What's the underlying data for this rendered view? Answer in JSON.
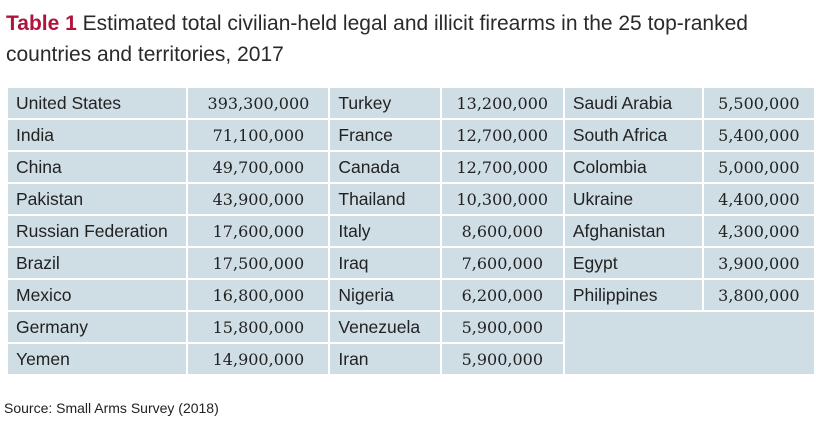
{
  "title": {
    "label": "Table 1",
    "text": " Estimated total civilian-held legal and illicit firearms in the 25 top-ranked countries and territories, 2017"
  },
  "rows": [
    [
      [
        "United States",
        "393,300,000"
      ],
      [
        "Turkey",
        "13,200,000"
      ],
      [
        "Saudi Arabia",
        "5,500,000"
      ]
    ],
    [
      [
        "India",
        "71,100,000"
      ],
      [
        "France",
        "12,700,000"
      ],
      [
        "South Africa",
        "5,400,000"
      ]
    ],
    [
      [
        "China",
        "49,700,000"
      ],
      [
        "Canada",
        "12,700,000"
      ],
      [
        "Colombia",
        "5,000,000"
      ]
    ],
    [
      [
        "Pakistan",
        "43,900,000"
      ],
      [
        "Thailand",
        "10,300,000"
      ],
      [
        "Ukraine",
        "4,400,000"
      ]
    ],
    [
      [
        "Russian Federation",
        "17,600,000"
      ],
      [
        "Italy",
        "8,600,000"
      ],
      [
        "Afghanistan",
        "4,300,000"
      ]
    ],
    [
      [
        "Brazil",
        "17,500,000"
      ],
      [
        "Iraq",
        "7,600,000"
      ],
      [
        "Egypt",
        "3,900,000"
      ]
    ],
    [
      [
        "Mexico",
        "16,800,000"
      ],
      [
        "Nigeria",
        "6,200,000"
      ],
      [
        "Philippines",
        "3,800,000"
      ]
    ],
    [
      [
        "Germany",
        "15,800,000"
      ],
      [
        "Venezuela",
        "5,900,000"
      ]
    ],
    [
      [
        "Yemen",
        "14,900,000"
      ],
      [
        "Iran",
        "5,900,000"
      ]
    ]
  ],
  "source": "Source: Small Arms Survey (2018)"
}
